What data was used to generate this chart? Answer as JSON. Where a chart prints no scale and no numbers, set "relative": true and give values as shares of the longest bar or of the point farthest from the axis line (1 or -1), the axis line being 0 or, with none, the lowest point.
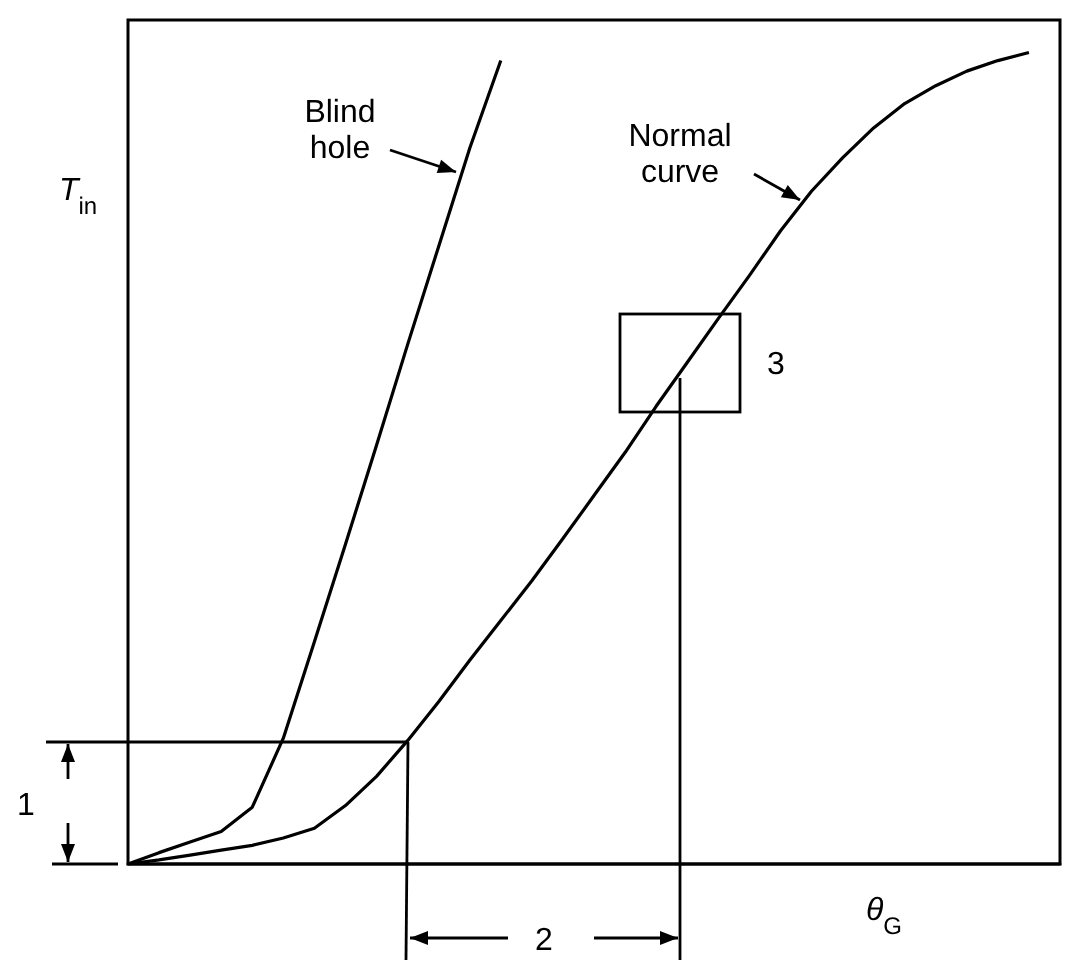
{
  "chart_data": {
    "type": "line",
    "relative": true,
    "xlabel": "θ$_{G}$",
    "ylabel": "T$_{in}$",
    "line_style": "solid",
    "categories": [
      null,
      null,
      null,
      null,
      null,
      null,
      null,
      null,
      null,
      null,
      null,
      null,
      null,
      null,
      null,
      null,
      null,
      null,
      null,
      null,
      null,
      null,
      null,
      null,
      null,
      null,
      null,
      null,
      null,
      null,
      null
    ],
    "series": [
      {
        "color": "#000000",
        "values": [
          0,
          0.005,
          0.011,
          0.017,
          0.023,
          0.032,
          0.044,
          0.072,
          0.108,
          0.152,
          0.2,
          0.251,
          0.3,
          0.349,
          0.401,
          0.454,
          0.507,
          0.564,
          0.618,
          0.672,
          0.725,
          0.78,
          0.829,
          0.87,
          0.907,
          0.937,
          0.959,
          0.977,
          0.99,
          1,
          null
        ]
      },
      {
        "color": "#000000",
        "values": [
          0,
          0.014,
          0.027,
          0.04,
          0.07,
          0.155,
          0.274,
          0.394,
          0.516,
          0.64,
          0.761,
          0.882,
          0.99,
          null,
          null,
          null,
          null,
          null,
          null,
          null,
          null,
          null,
          null,
          null,
          null,
          null,
          null,
          null,
          null,
          null,
          null
        ]
      }
    ],
    "annotations": [
      "Blind\nhole",
      "Normal\ncurve",
      "1",
      "2",
      "3"
    ]
  }
}
